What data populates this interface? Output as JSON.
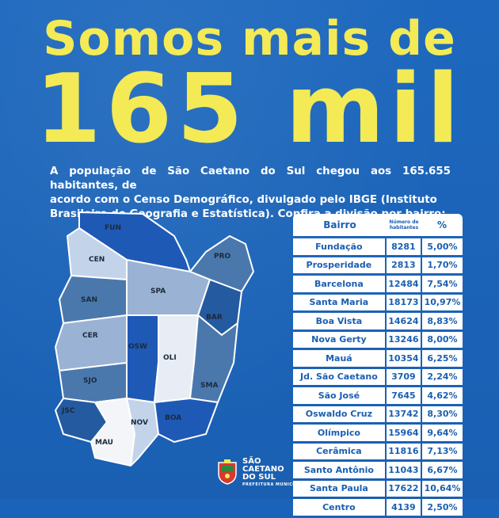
{
  "headline": {
    "line1": "Somos mais de",
    "line2": "165 mil"
  },
  "intro": {
    "line1": "A população de São Caetano do Sul chegou aos 165.655 habitantes, de",
    "line2": "acordo com o Censo Demográfico, divulgado pelo IBGE (Instituto",
    "line3": "Brasileiro de Geografia e Estatística). Confira a divisão por bairro:"
  },
  "table": {
    "header": {
      "bairro": "Bairro",
      "numero": "Número de habitantes",
      "pct": "%"
    },
    "rows": [
      {
        "bairro": "Fundação",
        "numero": "8281",
        "pct": "5,00%"
      },
      {
        "bairro": "Prosperidade",
        "numero": "2813",
        "pct": "1,70%"
      },
      {
        "bairro": "Barcelona",
        "numero": "12484",
        "pct": "7,54%"
      },
      {
        "bairro": "Santa Maria",
        "numero": "18173",
        "pct": "10,97%"
      },
      {
        "bairro": "Boa Vista",
        "numero": "14624",
        "pct": "8,83%"
      },
      {
        "bairro": "Nova Gerty",
        "numero": "13246",
        "pct": "8,00%"
      },
      {
        "bairro": "Mauá",
        "numero": "10354",
        "pct": "6,25%"
      },
      {
        "bairro": "Jd. São Caetano",
        "numero": "3709",
        "pct": "2,24%"
      },
      {
        "bairro": "São José",
        "numero": "7645",
        "pct": "4,62%"
      },
      {
        "bairro": "Oswaldo Cruz",
        "numero": "13742",
        "pct": "8,30%"
      },
      {
        "bairro": "Olímpico",
        "numero": "15964",
        "pct": "9,64%"
      },
      {
        "bairro": "Cerâmica",
        "numero": "11816",
        "pct": "7,13%"
      },
      {
        "bairro": "Santo Antônio",
        "numero": "11043",
        "pct": "6,67%"
      },
      {
        "bairro": "Santa Paula",
        "numero": "17622",
        "pct": "10,64%"
      },
      {
        "bairro": "Centro",
        "numero": "4139",
        "pct": "2,50%"
      }
    ]
  },
  "map": {
    "labels": {
      "fun": "FUN",
      "cen": "CEN",
      "pro": "PRO",
      "san": "SAN",
      "spa": "SPA",
      "bar": "BAR",
      "cer": "CER",
      "osw": "OSW",
      "oli": "OLI",
      "sjo": "SJO",
      "sma": "SMA",
      "jsc": "JSC",
      "nov": "NOV",
      "boa": "BOA",
      "mau": "MAU"
    }
  },
  "logo": {
    "line1": "SÃO",
    "line2": "CAETANO",
    "line3": "DO SUL",
    "sub": "PREFEITURA MUNICIPAL"
  },
  "colors": {
    "background": "#1a63b8",
    "headline": "#f3ea55",
    "table_text": "#1a5fb2"
  }
}
